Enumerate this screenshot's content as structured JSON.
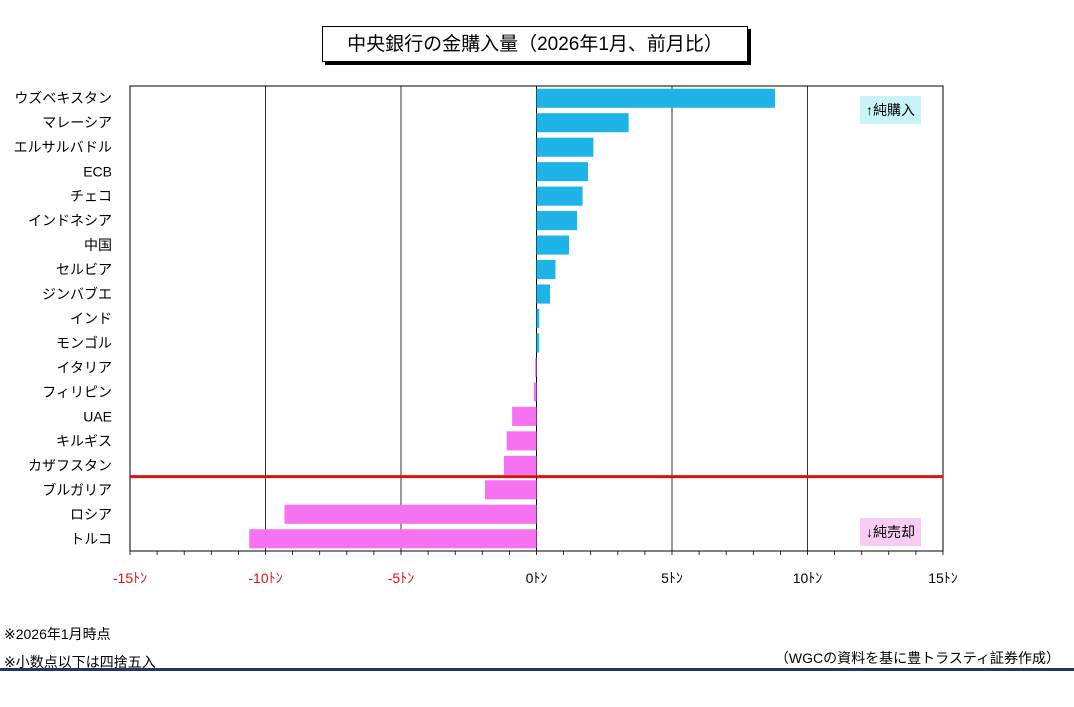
{
  "title": "中央銀行の金購入量（2026年1月、前月比）",
  "legend_buy": "↑純購入",
  "legend_sell": "↓純売却",
  "notes": [
    "※2026年1月時点",
    "※小数点以下は四捨五入"
  ],
  "source": "（WGCの資料を基に豊トラスティ証券作成）",
  "colors": {
    "positive": "#1eb4e8",
    "negative": "#f772f0",
    "divider": "#e01010",
    "rule": "#1f3864"
  },
  "chart_data": {
    "type": "bar",
    "orientation": "horizontal",
    "title": "中央銀行の金購入量（2026年1月、前月比）",
    "unit": "ﾄﾝ",
    "xlim": [
      -15,
      15
    ],
    "xticks": [
      {
        "value": -15,
        "label": "-15ﾄﾝ"
      },
      {
        "value": -10,
        "label": "-10ﾄﾝ"
      },
      {
        "value": -5,
        "label": "-5ﾄﾝ"
      },
      {
        "value": 0,
        "label": "0ﾄﾝ"
      },
      {
        "value": 5,
        "label": "5ﾄﾝ"
      },
      {
        "value": 10,
        "label": "10ﾄﾝ"
      },
      {
        "value": 15,
        "label": "15ﾄﾝ"
      }
    ],
    "categories": [
      "ウズベキスタン",
      "マレーシア",
      "エルサルバドル",
      "ECB",
      "チェコ",
      "インドネシア",
      "中国",
      "セルビア",
      "ジンバブエ",
      "インド",
      "モンゴル",
      "イタリア",
      "フィリピン",
      "UAE",
      "キルギス",
      "カザフスタン",
      "ブルガリア",
      "ロシア",
      "トルコ"
    ],
    "values": [
      8.8,
      3.4,
      2.1,
      1.9,
      1.7,
      1.5,
      1.2,
      0.7,
      0.5,
      0.1,
      0.1,
      -0.05,
      -0.1,
      -0.9,
      -1.1,
      -1.2,
      -1.9,
      -9.3,
      -10.6
    ],
    "divider_after_index": 15,
    "grid": true
  }
}
